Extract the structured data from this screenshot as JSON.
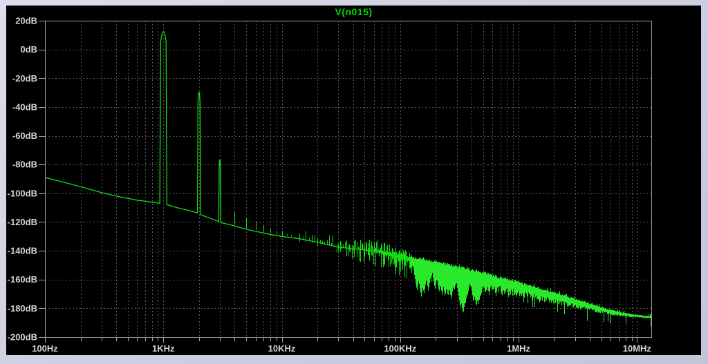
{
  "chart_data": {
    "type": "line",
    "title": "V(n015)",
    "x_axis": {
      "scale": "log",
      "unit": "Hz",
      "min_hz": 100,
      "max_hz": 13200000,
      "minor_gridlines_per_decade": true,
      "ticks": [
        {
          "label": "100Hz",
          "hz": 100
        },
        {
          "label": "1KHz",
          "hz": 1000
        },
        {
          "label": "10KHz",
          "hz": 10000
        },
        {
          "label": "100KHz",
          "hz": 100000
        },
        {
          "label": "1MHz",
          "hz": 1000000
        },
        {
          "label": "10MHz",
          "hz": 10000000
        }
      ]
    },
    "y_axis": {
      "unit": "dB",
      "max_db": 20,
      "min_db": -200,
      "step_db": 20,
      "ticks": [
        {
          "label": "20dB",
          "db": 20
        },
        {
          "label": "0dB",
          "db": 0
        },
        {
          "label": "-20dB",
          "db": -20
        },
        {
          "label": "-40dB",
          "db": -40
        },
        {
          "label": "-60dB",
          "db": -60
        },
        {
          "label": "-80dB",
          "db": -80
        },
        {
          "label": "-100dB",
          "db": -100
        },
        {
          "label": "-120dB",
          "db": -120
        },
        {
          "label": "-140dB",
          "db": -140
        },
        {
          "label": "-160dB",
          "db": -160
        },
        {
          "label": "-180dB",
          "db": -180
        },
        {
          "label": "-200dB",
          "db": -200
        }
      ]
    },
    "grid": {
      "style": "dashed",
      "y_step_db": 20
    },
    "trace": {
      "name": "V(n015)",
      "seed": 13,
      "floor_points_hz_db": [
        [
          100,
          -89
        ],
        [
          140,
          -92
        ],
        [
          200,
          -95.5
        ],
        [
          300,
          -99.5
        ],
        [
          430,
          -102.5
        ],
        [
          600,
          -104.8
        ],
        [
          800,
          -106.2
        ],
        [
          935,
          -107
        ],
        [
          1080,
          -108
        ],
        [
          1300,
          -110
        ],
        [
          1650,
          -112
        ],
        [
          1900,
          -113.5
        ],
        [
          2080,
          -115
        ],
        [
          2500,
          -117.5
        ],
        [
          2900,
          -119.5
        ],
        [
          3100,
          -120.5
        ],
        [
          3700,
          -122
        ],
        [
          4500,
          -124
        ],
        [
          5500,
          -125.8
        ],
        [
          7000,
          -127.6
        ],
        [
          8500,
          -129
        ],
        [
          10000,
          -130
        ],
        [
          12000,
          -130.9
        ],
        [
          13500,
          -131.4
        ],
        [
          16000,
          -132.5
        ],
        [
          20000,
          -134
        ],
        [
          25000,
          -136
        ],
        [
          30000,
          -137.5
        ],
        [
          40000,
          -138.6
        ],
        [
          50000,
          -139.4
        ],
        [
          60000,
          -140.2
        ],
        [
          75000,
          -142
        ],
        [
          90000,
          -144
        ],
        [
          100000,
          -145.3
        ],
        [
          112000,
          -146.2
        ],
        [
          125000,
          -147
        ]
      ],
      "peaks_hz_db_widths": [
        [
          1000,
          12.5,
          0.03,
          0.012
        ],
        [
          2000,
          -29.5,
          0.013,
          0.0045
        ],
        [
          3000,
          -76.5,
          0.009,
          0.003
        ]
      ],
      "harmonic_spikes_hz_db": [
        [
          4000,
          -112.5
        ],
        [
          5000,
          -117
        ],
        [
          6000,
          -119.5
        ],
        [
          7000,
          -122
        ],
        [
          8000,
          -124.5
        ],
        [
          9000,
          -126
        ],
        [
          10000,
          -126
        ],
        [
          11000,
          -128.5
        ],
        [
          12000,
          -129
        ],
        [
          13000,
          -130.5
        ]
      ],
      "noise_bins_hz": {
        "start": 14000,
        "end": 124000,
        "step": 1000
      },
      "noise_band_points_hz_center_up_down": [
        [
          125000,
          -147.5,
          3,
          5
        ],
        [
          160000,
          -149.5,
          3.5,
          7
        ],
        [
          200000,
          -151.5,
          4,
          8
        ],
        [
          260000,
          -154,
          4.5,
          9
        ],
        [
          330000,
          -156,
          4.5,
          10
        ],
        [
          430000,
          -158,
          4.5,
          9
        ],
        [
          550000,
          -160.5,
          4.5,
          7.5
        ],
        [
          700000,
          -162.5,
          4,
          7
        ],
        [
          900000,
          -164.5,
          4,
          6.5
        ],
        [
          1200000,
          -167,
          3.5,
          6
        ],
        [
          1600000,
          -170,
          3.2,
          5.5
        ],
        [
          2200000,
          -172.8,
          3,
          5
        ],
        [
          3000000,
          -176,
          2.6,
          4
        ],
        [
          4000000,
          -179,
          2.2,
          3.2
        ],
        [
          5500000,
          -182,
          1.7,
          2.4
        ],
        [
          7000000,
          -183.8,
          1.3,
          1.8
        ],
        [
          9000000,
          -185,
          1,
          1.3
        ],
        [
          11000000,
          -185.8,
          0.8,
          1
        ],
        [
          13200000,
          -186.3,
          0.7,
          0.9
        ]
      ],
      "notch_dips_hz_db": [
        [
          138000,
          -168
        ],
        [
          150000,
          -172
        ],
        [
          158000,
          -170
        ],
        [
          172000,
          -168
        ],
        [
          196000,
          -167
        ],
        [
          212000,
          -169
        ],
        [
          225000,
          -171
        ],
        [
          238000,
          -172
        ],
        [
          252000,
          -172
        ],
        [
          268000,
          -174
        ],
        [
          285000,
          -168
        ],
        [
          322000,
          -180
        ],
        [
          338000,
          -184
        ],
        [
          352000,
          -178
        ],
        [
          368000,
          -172
        ],
        [
          415000,
          -176
        ],
        [
          438000,
          -179
        ],
        [
          458000,
          -177
        ],
        [
          478000,
          -172
        ],
        [
          520000,
          -170
        ],
        [
          560000,
          -171
        ],
        [
          640000,
          -172
        ],
        [
          720000,
          -172
        ],
        [
          820000,
          -173
        ],
        [
          950000,
          -173
        ],
        [
          1100000,
          -175
        ],
        [
          1300000,
          -176
        ],
        [
          1500000,
          -177
        ]
      ]
    }
  },
  "colors": {
    "window_border": "#ced1e3",
    "background": "#000000",
    "grid": "#5a5a5a",
    "frame": "#9e9e9e",
    "tick": "#a8a8a8",
    "label": "#d4d4d4",
    "title": "#00d800",
    "trace": "#14dc14",
    "trace_dense": "#2ae82a"
  }
}
